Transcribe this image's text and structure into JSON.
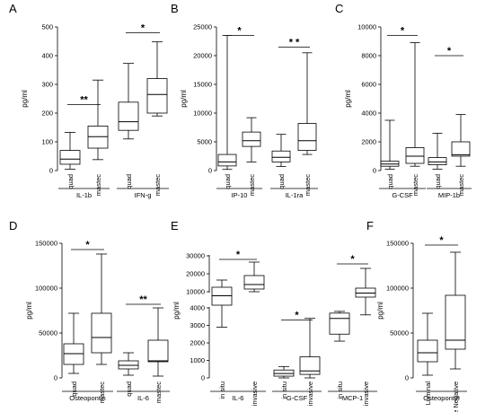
{
  "chart_data": [
    {
      "type": "boxplot",
      "letter": "A",
      "ylabel": "pg/ml",
      "ylim": [
        0,
        500
      ],
      "yticks": [
        0,
        100,
        200,
        300,
        400,
        500
      ],
      "categories": [
        "quad",
        "mastec",
        "quad",
        "mastec"
      ],
      "boxes": [
        {
          "min": 5,
          "q1": 22,
          "median": 40,
          "q3": 70,
          "max": 133
        },
        {
          "min": 38,
          "q1": 78,
          "median": 118,
          "q3": 155,
          "max": 315
        },
        {
          "min": 110,
          "q1": 140,
          "median": 170,
          "q3": 238,
          "max": 373
        },
        {
          "min": 190,
          "q1": 200,
          "median": 265,
          "q3": 320,
          "max": 448
        }
      ],
      "groups": [
        {
          "label": "IL-1b",
          "span": [
            0,
            1
          ]
        },
        {
          "label": "IFN-g",
          "span": [
            2,
            3
          ]
        }
      ],
      "significance": [
        {
          "pair": [
            0,
            1
          ],
          "y": 230,
          "text": "**"
        },
        {
          "pair": [
            2,
            3
          ],
          "y": 480,
          "text": "*"
        }
      ]
    },
    {
      "type": "boxplot",
      "letter": "B",
      "ylabel": "pg/ml",
      "ylim": [
        0,
        25000
      ],
      "yticks": [
        0,
        5000,
        10000,
        15000,
        20000,
        25000
      ],
      "categories": [
        "quad",
        "mastec",
        "quad",
        "mastec"
      ],
      "boxes": [
        {
          "min": 200,
          "q1": 800,
          "median": 1500,
          "q3": 2800,
          "max": 23500
        },
        {
          "min": 1500,
          "q1": 4200,
          "median": 5200,
          "q3": 6700,
          "max": 9200
        },
        {
          "min": 700,
          "q1": 1500,
          "median": 2300,
          "q3": 3400,
          "max": 6300
        },
        {
          "min": 2800,
          "q1": 3500,
          "median": 5200,
          "q3": 8200,
          "max": 20500
        }
      ],
      "groups": [
        {
          "label": "IP-10",
          "span": [
            0,
            1
          ]
        },
        {
          "label": "IL-1ra",
          "span": [
            2,
            3
          ]
        }
      ],
      "significance": [
        {
          "pair": [
            0,
            1
          ],
          "y": 23500,
          "text": "*"
        },
        {
          "pair": [
            2,
            3
          ],
          "y": 21500,
          "text": "* *"
        }
      ]
    },
    {
      "type": "boxplot",
      "letter": "C",
      "ylabel": "pg/ml",
      "ylim": [
        0,
        10000
      ],
      "yticks": [
        0,
        2000,
        4000,
        6000,
        8000,
        10000
      ],
      "categories": [
        "quad",
        "mastec",
        "quad",
        "mastec"
      ],
      "boxes": [
        {
          "min": 100,
          "q1": 300,
          "median": 450,
          "q3": 650,
          "max": 3500
        },
        {
          "min": 300,
          "q1": 500,
          "median": 1000,
          "q3": 1600,
          "max": 8900
        },
        {
          "min": 100,
          "q1": 400,
          "median": 600,
          "q3": 900,
          "max": 2600
        },
        {
          "min": 300,
          "q1": 1000,
          "median": 1100,
          "q3": 2000,
          "max": 3900
        }
      ],
      "groups": [
        {
          "label": "G-CSF",
          "span": [
            0,
            1
          ]
        },
        {
          "label": "MIP-1b",
          "span": [
            2,
            3
          ]
        }
      ],
      "significance": [
        {
          "pair": [
            0,
            1
          ],
          "y": 9400,
          "text": "*"
        },
        {
          "pair": [
            2,
            3
          ],
          "y": 8000,
          "text": "*"
        }
      ]
    },
    {
      "type": "boxplot",
      "letter": "D",
      "ylabel": "pg/ml",
      "ylim": [
        0,
        150000
      ],
      "yticks": [
        0,
        50000,
        100000,
        150000
      ],
      "categories": [
        "quad",
        "mastec",
        "quad",
        "mastec"
      ],
      "boxes": [
        {
          "min": 5000,
          "q1": 15000,
          "median": 27000,
          "q3": 38000,
          "max": 72000
        },
        {
          "min": 15000,
          "q1": 28000,
          "median": 45000,
          "q3": 72000,
          "max": 138000
        },
        {
          "min": 3000,
          "q1": 10000,
          "median": 14000,
          "q3": 19000,
          "max": 28000
        },
        {
          "min": 2000,
          "q1": 18000,
          "median": 19000,
          "q3": 42000,
          "max": 78000
        }
      ],
      "groups": [
        {
          "label": "Osteopontin",
          "span": [
            0,
            1
          ]
        },
        {
          "label": "IL-6",
          "span": [
            2,
            3
          ]
        }
      ],
      "significance": [
        {
          "pair": [
            0,
            1
          ],
          "y": 143000,
          "text": "*"
        },
        {
          "pair": [
            2,
            3
          ],
          "y": 82000,
          "text": "**"
        }
      ]
    },
    {
      "type": "boxplot",
      "letter": "E",
      "ylabel": "pg/ml",
      "scale": "broken",
      "yticks": [
        0,
        1000,
        2000,
        3000,
        4000,
        10000,
        20000,
        30000
      ],
      "categories": [
        "in situ",
        "invasive",
        "in situ",
        "invasive",
        "in situ",
        "invasive"
      ],
      "boxes": [
        {
          "min": 2900,
          "q1": 5000,
          "median": 8500,
          "q3": 12500,
          "max": 16500
        },
        {
          "min": 10000,
          "q1": 11500,
          "median": 14000,
          "q3": 19000,
          "max": 26500
        },
        {
          "min": 0,
          "q1": 100,
          "median": 250,
          "q3": 450,
          "max": 650
        },
        {
          "min": 0,
          "q1": 200,
          "median": 400,
          "q3": 1200,
          "max": 3400
        },
        {
          "min": 2100,
          "q1": 2500,
          "median": 3400,
          "q3": 3700,
          "max": 3800
        },
        {
          "min": 3600,
          "q1": 8000,
          "median": 9500,
          "q3": 12000,
          "max": 23000
        }
      ],
      "groups": [
        {
          "label": "IL-6",
          "span": [
            0,
            1
          ]
        },
        {
          "label": "G-CSF",
          "span": [
            2,
            3
          ]
        },
        {
          "label": "MCP-1",
          "span": [
            4,
            5
          ]
        }
      ],
      "significance": [
        {
          "pair": [
            0,
            1
          ],
          "y": 28000,
          "text": "*"
        },
        {
          "pair": [
            2,
            3
          ],
          "y": 3300,
          "text": "*"
        },
        {
          "pair": [
            4,
            5
          ],
          "y": 25500,
          "text": "*"
        }
      ]
    },
    {
      "type": "boxplot",
      "letter": "F",
      "ylabel": "pg/ml",
      "ylim": [
        0,
        150000
      ],
      "yticks": [
        0,
        50000,
        100000,
        150000
      ],
      "categories": [
        "Luminal",
        "Triple Negative"
      ],
      "boxes": [
        {
          "min": 3000,
          "q1": 18000,
          "median": 28000,
          "q3": 42000,
          "max": 72000
        },
        {
          "min": 10000,
          "q1": 32000,
          "median": 42000,
          "q3": 92000,
          "max": 140000
        }
      ],
      "groups": [
        {
          "label": "Osteopontin",
          "span": [
            0,
            1
          ]
        }
      ],
      "significance": [
        {
          "pair": [
            0,
            1
          ],
          "y": 148000,
          "text": "*"
        }
      ]
    }
  ]
}
